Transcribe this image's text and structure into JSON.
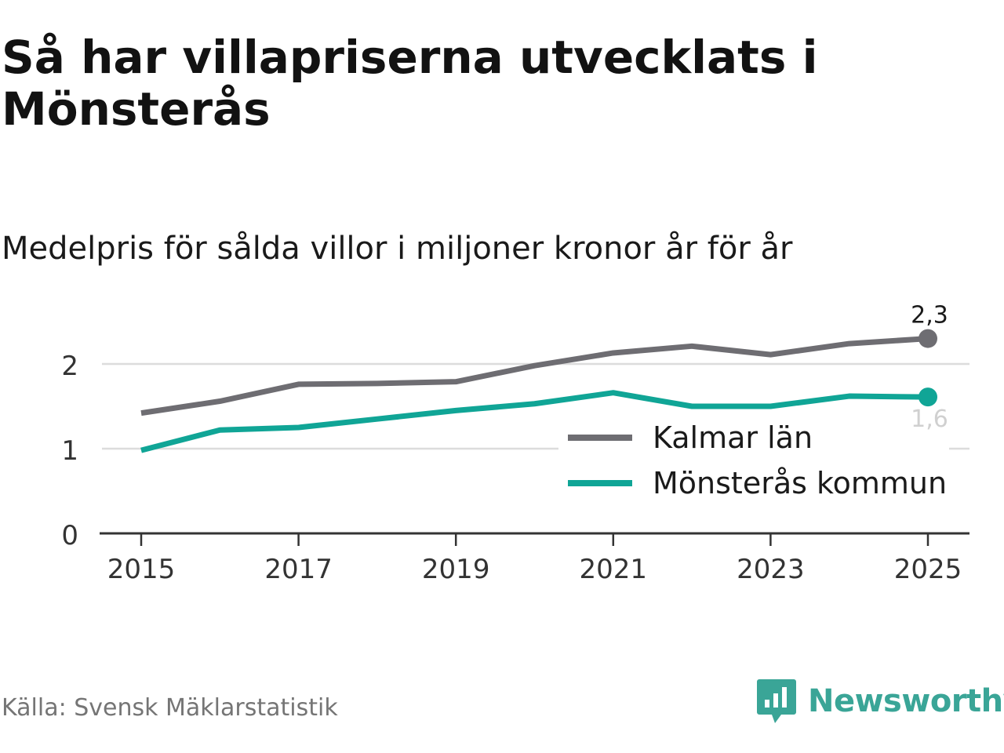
{
  "title": "Så har villapriserna utvecklats i Mönsterås",
  "subtitle": "Medelpris för sålda villor i miljoner kronor år för år",
  "source": "Källa: Svensk Mäklarstatistik",
  "brand": {
    "name": "Newsworthy",
    "icon": "newsworthy-logo-icon",
    "color": "#3aa597"
  },
  "chart_data": {
    "type": "line",
    "title": "Så har villapriserna utvecklats i Mönsterås",
    "subtitle": "Medelpris för sålda villor i miljoner kronor år för år",
    "xlabel": "",
    "ylabel": "",
    "x": [
      2015,
      2016,
      2017,
      2018,
      2019,
      2020,
      2021,
      2022,
      2023,
      2024,
      2025
    ],
    "xticks": [
      "2015",
      "2017",
      "2019",
      "2021",
      "2023",
      "2025"
    ],
    "yticks": [
      "0",
      "1",
      "2"
    ],
    "ylim": [
      0,
      2.4
    ],
    "xlim": [
      2014.5,
      2025.5
    ],
    "grid": true,
    "legend_position": "bottom-right",
    "series": [
      {
        "name": "Kalmar län",
        "color": "#6e6d72",
        "values": [
          1.42,
          1.56,
          1.76,
          1.77,
          1.79,
          1.98,
          2.13,
          2.21,
          2.11,
          2.24,
          2.3
        ],
        "end_label": "2,3"
      },
      {
        "name": "Mönsterås kommun",
        "color": "#10a596",
        "values": [
          0.98,
          1.22,
          1.25,
          1.35,
          1.45,
          1.53,
          1.66,
          1.5,
          1.5,
          1.62,
          1.61
        ],
        "end_label": "1,6"
      }
    ]
  }
}
